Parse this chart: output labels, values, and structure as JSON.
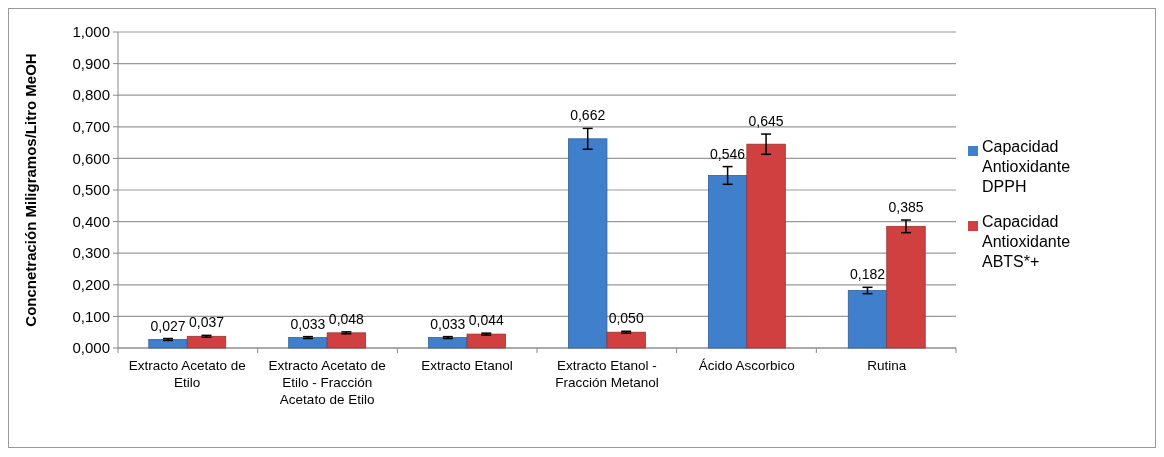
{
  "chart_data": {
    "type": "bar",
    "ylabel": "Concnetración Miligramos/Litro MeOH",
    "categories": [
      "Extracto Acetato de Etilo",
      "Extracto Acetato de Etilo - Fracción Acetato de Etilo",
      "Extracto Etanol",
      "Extracto Etanol - Fracción Metanol",
      "Ácido Ascorbico",
      "Rutina"
    ],
    "series": [
      {
        "name": "Capacidad Antioxidante DPPH",
        "color": "#3f7fcc",
        "values": [
          0.027,
          0.033,
          0.033,
          0.662,
          0.546,
          0.182
        ],
        "errors": [
          0.003,
          0.003,
          0.003,
          0.033,
          0.028,
          0.01
        ],
        "value_labels": [
          "0,027",
          "0,033",
          "0,033",
          "0,662",
          "0,546",
          "0,182"
        ]
      },
      {
        "name": "Capacidad Antioxidante ABTS*+",
        "color": "#d04040",
        "values": [
          0.037,
          0.048,
          0.044,
          0.05,
          0.645,
          0.385
        ],
        "errors": [
          0.003,
          0.003,
          0.003,
          0.003,
          0.032,
          0.02
        ],
        "value_labels": [
          "0,037",
          "0,048",
          "0,044",
          "0,050",
          "0,645",
          "0,385"
        ]
      }
    ],
    "ylim": [
      0,
      1
    ],
    "yticks": [
      {
        "value": 0,
        "label": "0,000"
      },
      {
        "value": 0.1,
        "label": "0,100"
      },
      {
        "value": 0.2,
        "label": "0,200"
      },
      {
        "value": 0.3,
        "label": "0,300"
      },
      {
        "value": 0.4,
        "label": "0,400"
      },
      {
        "value": 0.5,
        "label": "0,500"
      },
      {
        "value": 0.6,
        "label": "0,600"
      },
      {
        "value": 0.7,
        "label": "0,700"
      },
      {
        "value": 0.8,
        "label": "0,800"
      },
      {
        "value": 0.9,
        "label": "0,900"
      },
      {
        "value": 1,
        "label": "1,000"
      }
    ],
    "grid": "y",
    "legend": "right"
  }
}
